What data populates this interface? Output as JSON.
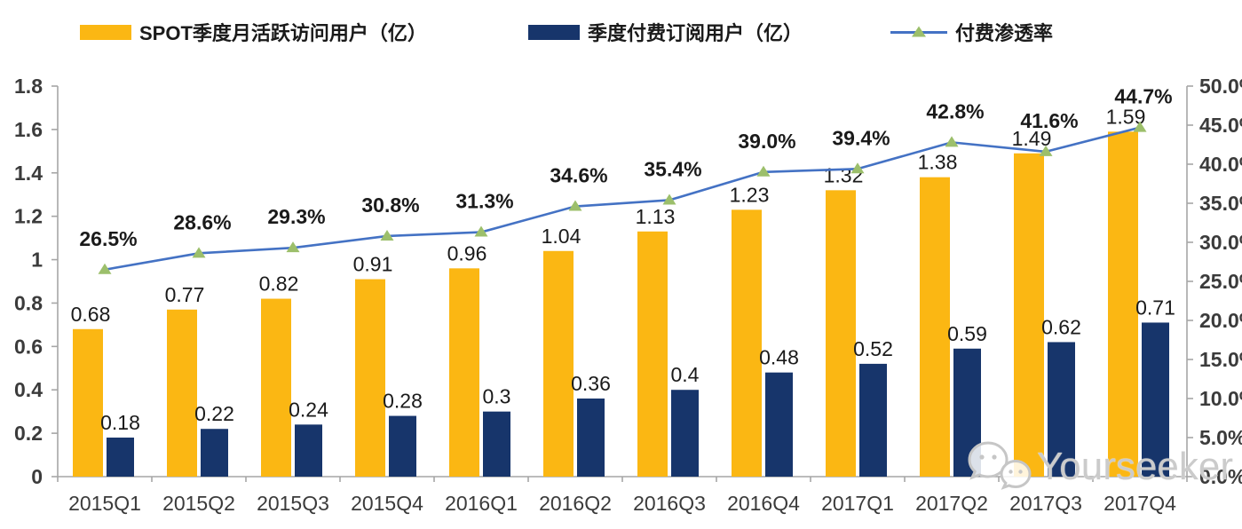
{
  "legend": {
    "items": [
      {
        "label": "SPOT季度月活跃访问用户（亿）",
        "color": "#FBB713",
        "type": "bar"
      },
      {
        "label": "季度付费订阅用户（亿）",
        "color": "#17356B",
        "type": "bar"
      },
      {
        "label": "付费渗透率",
        "color": "#4472C4",
        "marker_color": "#9CBF6B",
        "type": "line"
      }
    ]
  },
  "watermark": {
    "text": "Yourseeker",
    "icon": "wechat-icon"
  },
  "chart_data": {
    "type": "combo",
    "categories": [
      "2015Q1",
      "2015Q2",
      "2015Q3",
      "2015Q4",
      "2016Q1",
      "2016Q2",
      "2016Q3",
      "2016Q4",
      "2017Q1",
      "2017Q2",
      "2017Q3",
      "2017Q4"
    ],
    "series": [
      {
        "name": "SPOT季度月活跃访问用户（亿）",
        "type": "bar",
        "axis": "left",
        "color": "#FBB713",
        "values": [
          0.68,
          0.77,
          0.82,
          0.91,
          0.96,
          1.04,
          1.13,
          1.23,
          1.32,
          1.38,
          1.49,
          1.59
        ]
      },
      {
        "name": "季度付费订阅用户（亿）",
        "type": "bar",
        "axis": "left",
        "color": "#17356B",
        "values": [
          0.18,
          0.22,
          0.24,
          0.28,
          0.3,
          0.36,
          0.4,
          0.48,
          0.52,
          0.59,
          0.62,
          0.71
        ]
      },
      {
        "name": "付费渗透率",
        "type": "line",
        "axis": "right",
        "color": "#4472C4",
        "marker": "triangle",
        "marker_color": "#9CBF6B",
        "values": [
          26.5,
          28.6,
          29.3,
          30.8,
          31.3,
          34.6,
          35.4,
          39.0,
          39.4,
          42.8,
          41.6,
          44.7
        ]
      }
    ],
    "axes": {
      "left": {
        "min": 0,
        "max": 1.8,
        "ticks": [
          0,
          0.2,
          0.4,
          0.6,
          0.8,
          1,
          1.2,
          1.4,
          1.6,
          1.8
        ]
      },
      "right": {
        "min": 0,
        "max": 50,
        "ticks": [
          0,
          5,
          10,
          15,
          20,
          25,
          30,
          35,
          40,
          45,
          50
        ],
        "format": "percent"
      }
    },
    "grid": false,
    "legend_position": "top",
    "axis_color": "#A6A6A6",
    "axis_text_color": "#3B3B3B",
    "label_text_color": "#1a1a1a"
  }
}
